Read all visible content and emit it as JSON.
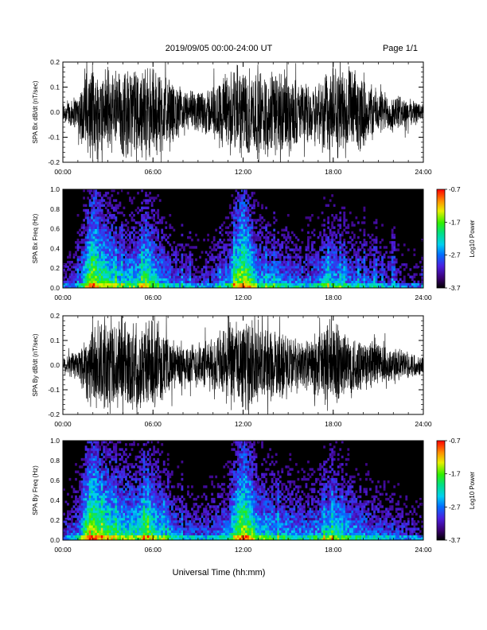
{
  "header": {
    "title": "2019/09/05  00:00-24:00 UT",
    "page": "Page 1/1"
  },
  "footer": {
    "xlabel": "Universal Time (hh:mm)"
  },
  "colorbar_labels": [
    "-0.7",
    "-1.7",
    "-2.7",
    "-3.7"
  ],
  "chart_data": [
    {
      "type": "line",
      "ylabel": "SPA Bx dB/dt (nT/sec)",
      "xlim": [
        0,
        24
      ],
      "ylim": [
        -0.2,
        0.2
      ],
      "xticks": [
        "00:00",
        "06:00",
        "12:00",
        "18:00",
        "24:00"
      ],
      "yticks": [
        "-0.2",
        "-0.1",
        "0.0",
        "0.1",
        "0.2"
      ],
      "envelope": {
        "t": [
          0,
          1,
          1.5,
          2,
          2.5,
          3,
          3.5,
          4,
          4.5,
          5,
          5.5,
          6,
          6.5,
          7,
          8,
          9,
          10,
          10.5,
          11,
          11.5,
          12,
          12.5,
          13,
          14,
          15,
          15.5,
          16,
          17,
          17.5,
          18,
          19,
          20,
          21,
          22,
          23,
          24
        ],
        "amp": [
          0.05,
          0.08,
          0.2,
          0.2,
          0.2,
          0.2,
          0.2,
          0.2,
          0.2,
          0.2,
          0.2,
          0.2,
          0.2,
          0.15,
          0.1,
          0.09,
          0.12,
          0.15,
          0.2,
          0.2,
          0.2,
          0.2,
          0.2,
          0.2,
          0.18,
          0.15,
          0.12,
          0.15,
          0.2,
          0.2,
          0.2,
          0.15,
          0.1,
          0.08,
          0.06,
          0.04
        ]
      }
    },
    {
      "type": "heatmap",
      "ylabel": "SPA Bx Freq (Hz)",
      "colorbar_label": "Log10 Power",
      "xlim": [
        0,
        24
      ],
      "ylim": [
        0,
        1.0
      ],
      "clim": [
        -3.7,
        -0.7
      ],
      "xticks": [
        "00:00",
        "06:00",
        "12:00",
        "18:00",
        "24:00"
      ],
      "yticks": [
        "0.0",
        "0.2",
        "0.4",
        "0.6",
        "0.8",
        "1.0"
      ],
      "activity": {
        "t": [
          0,
          1,
          1.5,
          2,
          2.5,
          3,
          4,
          5,
          5.5,
          6,
          6.5,
          7,
          8,
          9,
          10,
          11,
          11.5,
          12,
          12.5,
          13,
          14,
          15,
          16,
          17,
          17.5,
          18,
          19,
          20,
          21,
          22,
          23,
          24
        ],
        "level": [
          0.3,
          0.4,
          0.7,
          0.95,
          0.8,
          0.75,
          0.6,
          0.65,
          0.8,
          0.7,
          0.6,
          0.5,
          0.4,
          0.35,
          0.4,
          0.55,
          0.8,
          0.95,
          0.8,
          0.6,
          0.55,
          0.5,
          0.45,
          0.5,
          0.6,
          0.6,
          0.5,
          0.45,
          0.4,
          0.35,
          0.3,
          0.25
        ]
      }
    },
    {
      "type": "line",
      "ylabel": "SPA By dB/dt (nT/sec)",
      "xlim": [
        0,
        24
      ],
      "ylim": [
        -0.2,
        0.2
      ],
      "xticks": [
        "00:00",
        "06:00",
        "12:00",
        "18:00",
        "24:00"
      ],
      "yticks": [
        "-0.2",
        "-0.1",
        "0.0",
        "0.1",
        "0.2"
      ],
      "envelope": {
        "t": [
          0,
          1,
          1.5,
          2,
          2.5,
          3,
          3.5,
          4,
          4.5,
          5,
          5.5,
          6,
          6.5,
          7,
          8,
          9,
          10,
          10.5,
          11,
          11.5,
          12,
          12.5,
          13,
          14,
          15,
          15.5,
          16,
          17,
          17.5,
          18,
          19,
          20,
          21,
          22,
          23,
          24
        ],
        "amp": [
          0.04,
          0.07,
          0.15,
          0.2,
          0.2,
          0.2,
          0.2,
          0.2,
          0.2,
          0.2,
          0.2,
          0.2,
          0.15,
          0.12,
          0.1,
          0.1,
          0.12,
          0.15,
          0.2,
          0.2,
          0.2,
          0.2,
          0.2,
          0.15,
          0.15,
          0.12,
          0.1,
          0.15,
          0.2,
          0.2,
          0.15,
          0.12,
          0.1,
          0.08,
          0.06,
          0.04
        ]
      }
    },
    {
      "type": "heatmap",
      "ylabel": "SPA By Freq (Hz)",
      "colorbar_label": "Log10 Power",
      "xlim": [
        0,
        24
      ],
      "ylim": [
        0,
        1.0
      ],
      "clim": [
        -3.7,
        -0.7
      ],
      "xticks": [
        "00:00",
        "06:00",
        "12:00",
        "18:00",
        "24:00"
      ],
      "yticks": [
        "0.0",
        "0.2",
        "0.4",
        "0.6",
        "0.8",
        "1.0"
      ],
      "activity": {
        "t": [
          0,
          1,
          1.5,
          2,
          2.5,
          3,
          4,
          5,
          5.5,
          6,
          6.5,
          7,
          8,
          9,
          10,
          11,
          11.5,
          12,
          12.5,
          13,
          14,
          15,
          16,
          17,
          17.5,
          18,
          19,
          20,
          21,
          22,
          23,
          24
        ],
        "level": [
          0.35,
          0.5,
          0.8,
          0.95,
          0.85,
          0.8,
          0.7,
          0.7,
          0.8,
          0.75,
          0.65,
          0.55,
          0.45,
          0.4,
          0.45,
          0.55,
          0.8,
          0.95,
          0.85,
          0.65,
          0.6,
          0.55,
          0.5,
          0.55,
          0.65,
          0.7,
          0.6,
          0.5,
          0.45,
          0.4,
          0.35,
          0.3
        ]
      }
    }
  ]
}
